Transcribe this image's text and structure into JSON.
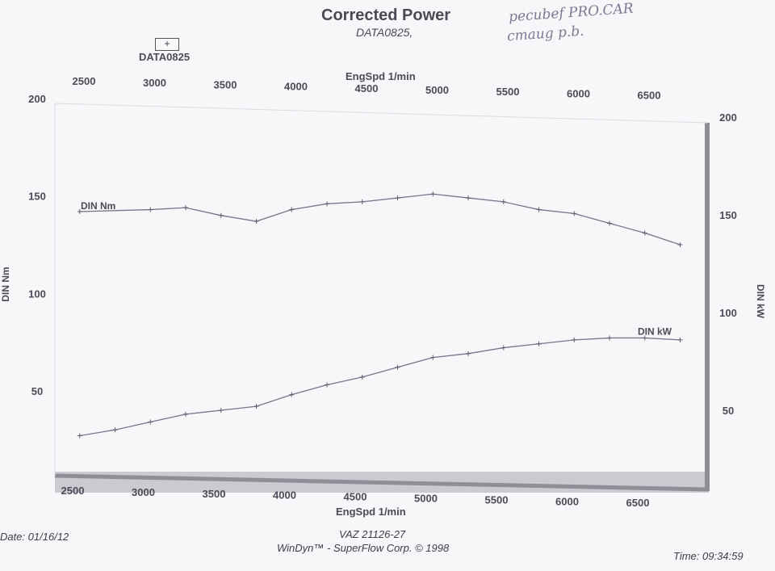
{
  "header": {
    "title": "Corrected Power",
    "subtitle": "DATA0825,",
    "legend_marker": "+",
    "legend_label": "DATA0825"
  },
  "handwriting": {
    "line1": "pecubef  PRO.CAR",
    "line2": "cmaug  p.b."
  },
  "footer": {
    "date": "Date: 01/16/12",
    "model": "VAZ 21126-27",
    "software": "WinDyn™ - SuperFlow Corp. © 1998",
    "time": "Time: 09:34:59"
  },
  "chart_data": {
    "type": "line",
    "title": "Corrected Power",
    "xlabel": "EngSpd 1/min",
    "ylabel_left": "DIN Nm",
    "ylabel_right": "DIN kW",
    "xlim": [
      2500,
      6750
    ],
    "x_ticks": [
      2500,
      3000,
      3500,
      4000,
      4500,
      5000,
      5500,
      6000,
      6500
    ],
    "ylim_left": [
      0,
      200
    ],
    "y_ticks_left": [
      50,
      100,
      150,
      200
    ],
    "ylim_right": [
      0,
      200
    ],
    "y_ticks_right": [
      50,
      100,
      150,
      200
    ],
    "grid": false,
    "series": [
      {
        "name": "DIN Nm",
        "axis": "left",
        "x": [
          2550,
          3050,
          3300,
          3550,
          3800,
          4050,
          4300,
          4550,
          4800,
          5050,
          5300,
          5550,
          5800,
          6050,
          6300,
          6550,
          6800
        ],
        "values": [
          142,
          143,
          144,
          140,
          137,
          143,
          146,
          147,
          149,
          151,
          149,
          147,
          143,
          141,
          136,
          131,
          125
        ]
      },
      {
        "name": "DIN kW",
        "axis": "right",
        "x": [
          2550,
          2800,
          3050,
          3300,
          3550,
          3800,
          4050,
          4300,
          4550,
          4800,
          5050,
          5300,
          5550,
          5800,
          6050,
          6300,
          6550,
          6800
        ],
        "values": [
          37,
          40,
          44,
          48,
          50,
          52,
          58,
          63,
          67,
          72,
          77,
          79,
          82,
          84,
          86,
          87,
          87,
          86
        ]
      }
    ]
  }
}
